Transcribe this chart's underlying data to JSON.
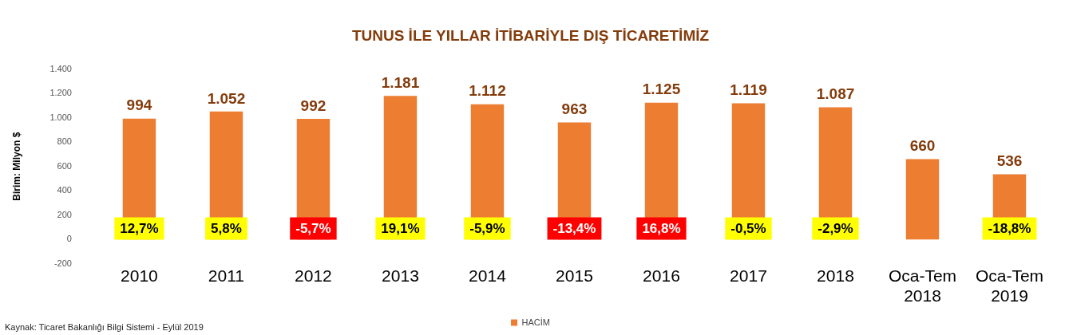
{
  "chart_data": {
    "type": "bar",
    "title": "TUNUS İLE YILLAR İTİBARİYLE DIŞ TİCARETİMİZ",
    "ylabel": "Birim: Milyon $",
    "categories": [
      "2010",
      "2011",
      "2012",
      "2013",
      "2014",
      "2015",
      "2016",
      "2017",
      "2018",
      "Oca-Tem 2018",
      "Oca-Tem 2019"
    ],
    "series": [
      {
        "name": "HACİM",
        "color": "#ed7d31",
        "values": [
          994,
          1052,
          992,
          1181,
          1112,
          963,
          1125,
          1119,
          1087,
          660,
          536
        ],
        "value_labels": [
          "994",
          "1.052",
          "992",
          "1.181",
          "1.112",
          "963",
          "1.125",
          "1.119",
          "1.087",
          "660",
          "536"
        ]
      }
    ],
    "ylim": [
      -200,
      1400
    ],
    "yticks": [
      {
        "value": -200,
        "label": "-200"
      },
      {
        "value": 0,
        "label": "0"
      },
      {
        "value": 200,
        "label": "200"
      },
      {
        "value": 400,
        "label": "400"
      },
      {
        "value": 600,
        "label": "600"
      },
      {
        "value": 800,
        "label": "800"
      },
      {
        "value": 1000,
        "label": "1.000"
      },
      {
        "value": 1200,
        "label": "1.200"
      },
      {
        "value": 1400,
        "label": "1.400"
      }
    ],
    "grid": false,
    "legend": "bottom",
    "annotations": [
      "12,7%",
      "5,8%",
      "-5,7%",
      "19,1%",
      "-5,9%",
      "-13,4%",
      "16,8%",
      "-0,5%",
      "-2,9%",
      "-18,8%",
      "Kaynak: Ticaret Bakanlığı Bilgi Sistemi - Eylül 2019"
    ]
  }
}
